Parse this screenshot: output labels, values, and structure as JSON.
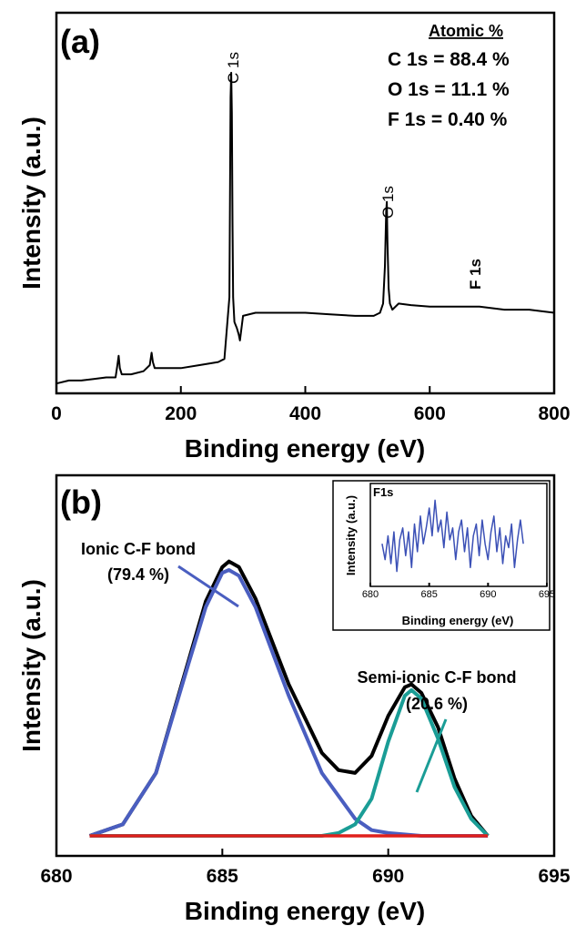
{
  "chart_data": [
    {
      "panel": "(a)",
      "type": "line",
      "xlabel": "Binding energy (eV)",
      "ylabel": "Intensity (a.u.)",
      "xlim": [
        0,
        800
      ],
      "xticks": [
        0,
        200,
        400,
        600,
        800
      ],
      "yticks_shown": false,
      "series": [
        {
          "color": "#000000",
          "x": [
            0,
            20,
            40,
            60,
            80,
            95,
            98,
            100,
            102,
            105,
            120,
            140,
            150,
            153,
            155,
            158,
            165,
            200,
            230,
            260,
            270,
            278,
            280,
            281,
            282,
            283,
            284,
            286,
            290,
            293,
            295,
            300,
            320,
            360,
            400,
            440,
            480,
            510,
            520,
            525,
            528,
            530,
            531,
            532,
            534,
            536,
            540,
            550,
            570,
            600,
            640,
            680,
            720,
            760,
            800
          ],
          "y": [
            2,
            3,
            3,
            3.5,
            4,
            4,
            8,
            11,
            7,
            5,
            5,
            6,
            8,
            12,
            9,
            7,
            7,
            7,
            8,
            9,
            10,
            30,
            95,
            103,
            90,
            55,
            30,
            22,
            20,
            18,
            16,
            24,
            25,
            25,
            25,
            24.5,
            24,
            24,
            25,
            28,
            40,
            58,
            61,
            48,
            33,
            28,
            26,
            28,
            27.5,
            27,
            27,
            27,
            26,
            26,
            25
          ]
        }
      ],
      "peak_labels": [
        "C 1s",
        "O 1s",
        "F 1s"
      ],
      "annotation": {
        "title": "Atomic %",
        "lines": [
          "C 1s = 88.4 %",
          "O 1s = 11.1 %",
          "F 1s  = 0.40 %"
        ]
      }
    },
    {
      "panel": "(b)",
      "type": "line",
      "xlabel": "Binding energy (eV)",
      "ylabel": "Intensity (a.u.)",
      "xlim": [
        680,
        695
      ],
      "xticks": [
        680,
        685,
        690,
        695
      ],
      "yticks_shown": false,
      "series": [
        {
          "color": "#000000",
          "x": [
            681,
            682,
            683,
            684,
            684.5,
            685,
            685.2,
            685.5,
            686,
            687,
            688,
            688.5,
            689,
            689.5,
            690,
            690.5,
            690.7,
            691,
            691.5,
            692,
            692.5,
            693
          ],
          "y": [
            0.0,
            0.04,
            0.22,
            0.62,
            0.82,
            0.94,
            0.96,
            0.94,
            0.83,
            0.53,
            0.29,
            0.23,
            0.22,
            0.28,
            0.42,
            0.52,
            0.53,
            0.5,
            0.38,
            0.2,
            0.07,
            0.0
          ]
        },
        {
          "color": "#4a5ec0",
          "x": [
            681,
            682,
            683,
            684,
            684.5,
            685,
            685.2,
            685.5,
            686,
            687,
            688,
            689,
            689.5,
            690,
            691,
            692,
            693
          ],
          "y": [
            0.0,
            0.04,
            0.22,
            0.61,
            0.8,
            0.92,
            0.93,
            0.91,
            0.8,
            0.49,
            0.22,
            0.06,
            0.02,
            0.01,
            0.0,
            0.0,
            0.0
          ]
        },
        {
          "color": "#1a9d96",
          "x": [
            681,
            686,
            688,
            688.5,
            689,
            689.5,
            690,
            690.5,
            690.7,
            691,
            691.5,
            692,
            692.5,
            693
          ],
          "y": [
            0.0,
            0.0,
            0.0,
            0.01,
            0.04,
            0.13,
            0.33,
            0.49,
            0.51,
            0.48,
            0.34,
            0.17,
            0.06,
            0.0
          ]
        },
        {
          "color": "#e0201c",
          "x": [
            681,
            693
          ],
          "y": [
            0.0,
            0.0
          ]
        }
      ],
      "annotations": [
        {
          "lines": [
            "Ionic C-F bond",
            "(79.4 %)"
          ]
        },
        {
          "lines": [
            "Semi-ionic C-F bond",
            "(20.6 %)"
          ]
        }
      ]
    },
    {
      "panel": "inset",
      "type": "line",
      "title": "F1s",
      "xlabel": "Binding energy (eV)",
      "ylabel": "Intensity (a.u.)",
      "xlim": [
        680,
        695
      ],
      "xticks": [
        680,
        685,
        690,
        695
      ],
      "series": [
        {
          "color": "#3b50b6",
          "x": [
            681,
            681.25,
            681.5,
            681.75,
            682,
            682.25,
            682.5,
            682.75,
            683,
            683.25,
            683.5,
            683.75,
            684,
            684.25,
            684.5,
            684.75,
            685,
            685.25,
            685.5,
            685.75,
            686,
            686.25,
            686.5,
            686.75,
            687,
            687.25,
            687.5,
            687.75,
            688,
            688.25,
            688.5,
            688.75,
            689,
            689.25,
            689.5,
            689.75,
            690,
            690.25,
            690.5,
            690.75,
            691,
            691.25,
            691.5,
            691.75,
            692,
            692.25,
            692.5,
            692.75,
            693
          ],
          "y": [
            0.4,
            0.2,
            0.5,
            0.15,
            0.55,
            0.05,
            0.45,
            0.6,
            0.25,
            0.55,
            0.1,
            0.65,
            0.3,
            0.75,
            0.4,
            0.6,
            0.85,
            0.5,
            0.95,
            0.55,
            0.7,
            0.35,
            0.8,
            0.45,
            0.6,
            0.2,
            0.55,
            0.7,
            0.3,
            0.6,
            0.1,
            0.5,
            0.65,
            0.25,
            0.7,
            0.4,
            0.2,
            0.55,
            0.75,
            0.3,
            0.6,
            0.15,
            0.5,
            0.35,
            0.65,
            0.1,
            0.45,
            0.7,
            0.4
          ]
        }
      ]
    }
  ]
}
